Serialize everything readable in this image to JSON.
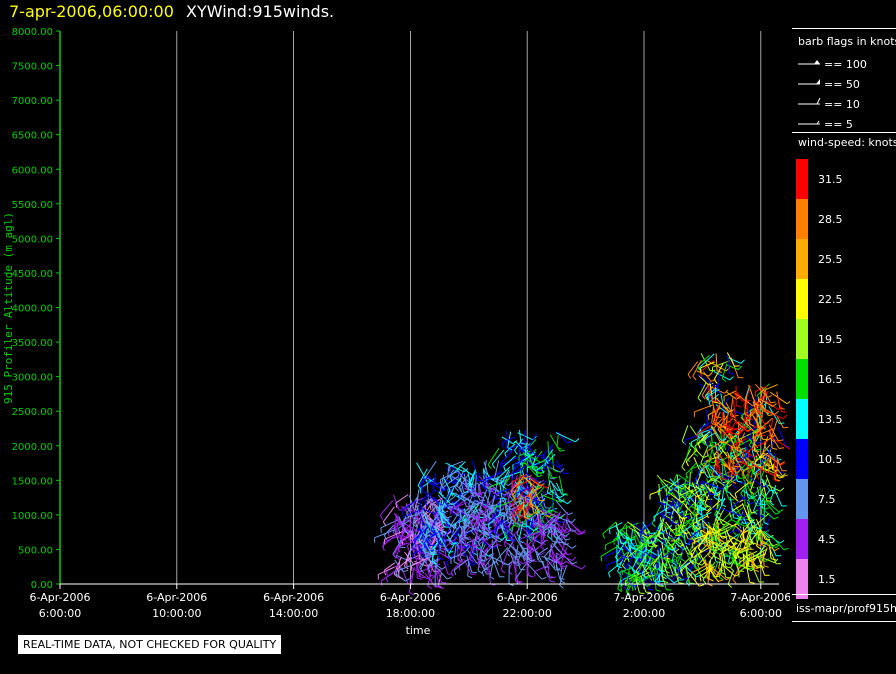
{
  "header": {
    "datetime": "7-apr-2006,06:00:00",
    "product": "XYWind:915winds."
  },
  "chart_data": {
    "type": "scatter",
    "ylabel": "915 Profiler Altitude (m agl)",
    "xlabel": "time",
    "ylim": [
      0,
      8000
    ],
    "yticks": [
      "0.00",
      "500.00",
      "1000.00",
      "1500.00",
      "2000.00",
      "2500.00",
      "3000.00",
      "3500.00",
      "4000.00",
      "4500.00",
      "5000.00",
      "5500.00",
      "6000.00",
      "6500.00",
      "7000.00",
      "7500.00",
      "8000.00"
    ],
    "xlim_hours": [
      0,
      26
    ],
    "xticks": [
      {
        "hour": 0,
        "line1": "6-Apr-2006",
        "line2": "6:00:00"
      },
      {
        "hour": 4,
        "line1": "6-Apr-2006",
        "line2": "10:00:00"
      },
      {
        "hour": 8,
        "line1": "6-Apr-2006",
        "line2": "14:00:00"
      },
      {
        "hour": 12,
        "line1": "6-Apr-2006",
        "line2": "18:00:00"
      },
      {
        "hour": 16,
        "line1": "6-Apr-2006",
        "line2": "22:00:00"
      },
      {
        "hour": 20,
        "line1": "7-Apr-2006",
        "line2": "2:00:00"
      },
      {
        "hour": 24,
        "line1": "7-Apr-2006",
        "line2": "6:00:00"
      }
    ],
    "grid": "vertical",
    "clusters": [
      {
        "t0": 11.4,
        "t1": 13.2,
        "z0": 150,
        "z1": 1300,
        "s0": 2,
        "s1": 8,
        "n": 180
      },
      {
        "t0": 12.2,
        "t1": 14.6,
        "z0": 500,
        "z1": 1800,
        "s0": 6,
        "s1": 14,
        "n": 160
      },
      {
        "t0": 13.6,
        "t1": 16.2,
        "z0": 300,
        "z1": 1600,
        "s0": 3,
        "s1": 9,
        "n": 200
      },
      {
        "t0": 15.0,
        "t1": 17.1,
        "z0": 800,
        "z1": 2250,
        "s0": 8,
        "s1": 17,
        "n": 160
      },
      {
        "t0": 15.7,
        "t1": 16.4,
        "z0": 1100,
        "z1": 1600,
        "s0": 24,
        "s1": 33,
        "n": 25
      },
      {
        "t0": 16.2,
        "t1": 17.4,
        "z0": 250,
        "z1": 1100,
        "s0": 3,
        "s1": 8,
        "n": 70
      },
      {
        "t0": 19.0,
        "t1": 20.6,
        "z0": 100,
        "z1": 900,
        "s0": 9,
        "s1": 20,
        "n": 120
      },
      {
        "t0": 20.4,
        "t1": 22.0,
        "z0": 150,
        "z1": 1600,
        "s0": 9,
        "s1": 22,
        "n": 160
      },
      {
        "t0": 21.5,
        "t1": 24.4,
        "z0": 300,
        "z1": 2300,
        "s0": 14,
        "s1": 24,
        "n": 180
      },
      {
        "t0": 21.8,
        "t1": 24.6,
        "z0": 800,
        "z1": 2900,
        "s0": 9,
        "s1": 17,
        "n": 120
      },
      {
        "t0": 22.3,
        "t1": 24.6,
        "z0": 1700,
        "z1": 2900,
        "s0": 25,
        "s1": 34,
        "n": 130
      },
      {
        "t0": 21.8,
        "t1": 23.0,
        "z0": 2800,
        "z1": 3350,
        "s0": 10,
        "s1": 32,
        "n": 30
      },
      {
        "t0": 22.0,
        "t1": 24.2,
        "z0": 200,
        "z1": 900,
        "s0": 18,
        "s1": 28,
        "n": 80
      }
    ]
  },
  "legend": {
    "barb_title": "barb flags in knots",
    "barbs": [
      {
        "kind": "pennant",
        "label": "== 100"
      },
      {
        "kind": "flag",
        "label": "== 50"
      },
      {
        "kind": "full",
        "label": "== 10"
      },
      {
        "kind": "half",
        "label": "== 5"
      }
    ],
    "speed_title": "wind-speed: knots",
    "speed_bins": [
      {
        "label": "31.5",
        "color": "#ff0000"
      },
      {
        "label": "28.5",
        "color": "#ff8000"
      },
      {
        "label": "25.5",
        "color": "#ffaa00"
      },
      {
        "label": "22.5",
        "color": "#ffff00"
      },
      {
        "label": "19.5",
        "color": "#a0ff20"
      },
      {
        "label": "16.5",
        "color": "#00e000"
      },
      {
        "label": "13.5",
        "color": "#00ffff"
      },
      {
        "label": "10.5",
        "color": "#0000ff"
      },
      {
        "label": "7.5",
        "color": "#6495ed"
      },
      {
        "label": "4.5",
        "color": "#a020f0"
      },
      {
        "label": "1.5",
        "color": "#ee82ee"
      }
    ],
    "source": "iss-mapr/prof915h"
  },
  "footer": {
    "quality_notice": "REAL-TIME DATA, NOT CHECKED FOR QUALITY"
  }
}
